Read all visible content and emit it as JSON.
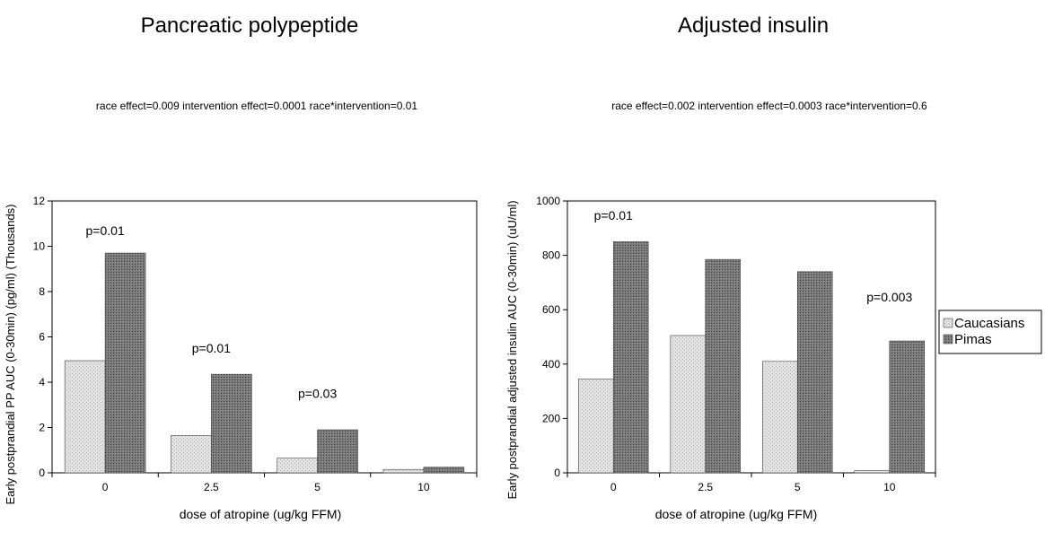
{
  "chart_data": [
    {
      "type": "bar",
      "title": "Pancreatic polypeptide",
      "subtitle": "race effect=0.009  intervention effect=0.0001  race*intervention=0.01",
      "xlabel": "dose of atropine (ug/kg FFM)",
      "ylabel": "Early postprandial PP AUC (0-30min) (pg/ml)  (Thousands)",
      "categories": [
        "0",
        "2.5",
        "5",
        "10"
      ],
      "ylim": [
        0,
        12
      ],
      "yticks": [
        "0",
        "2",
        "4",
        "6",
        "8",
        "10",
        "12"
      ],
      "series": [
        {
          "name": "Caucasians",
          "values": [
            4.95,
            1.65,
            0.65,
            0.15
          ]
        },
        {
          "name": "Pimas",
          "values": [
            9.7,
            4.35,
            1.9,
            0.25
          ]
        }
      ],
      "annotations": [
        {
          "text": "p=0.01",
          "category": "0",
          "y": 10.5
        },
        {
          "text": "p=0.01",
          "category": "2.5",
          "y": 5.3
        },
        {
          "text": "p=0.03",
          "category": "5",
          "y": 3.3
        }
      ],
      "grid": false
    },
    {
      "type": "bar",
      "title": "Adjusted insulin",
      "subtitle": "race effect=0.002  intervention effect=0.0003  race*intervention=0.6",
      "xlabel": "dose of atropine (ug/kg FFM)",
      "ylabel": "Early postprandial adjusted insulin AUC (0-30min) (uU/ml)",
      "categories": [
        "0",
        "2.5",
        "5",
        "10"
      ],
      "ylim": [
        0,
        1000
      ],
      "yticks": [
        "0",
        "200",
        "400",
        "600",
        "800",
        "1000"
      ],
      "series": [
        {
          "name": "Caucasians",
          "values": [
            345,
            505,
            410,
            8
          ]
        },
        {
          "name": "Pimas",
          "values": [
            850,
            785,
            740,
            485
          ]
        }
      ],
      "annotations": [
        {
          "text": "p=0.01",
          "category": "0",
          "y": 930
        },
        {
          "text": "p=0.003",
          "category": "10",
          "y": 630
        }
      ],
      "legend": {
        "placement": "right",
        "entries": [
          "Caucasians",
          "Pimas"
        ]
      },
      "grid": false
    }
  ],
  "colors": {
    "caucasians": "#d2d2d2",
    "pimas": "#6e6e6e"
  }
}
